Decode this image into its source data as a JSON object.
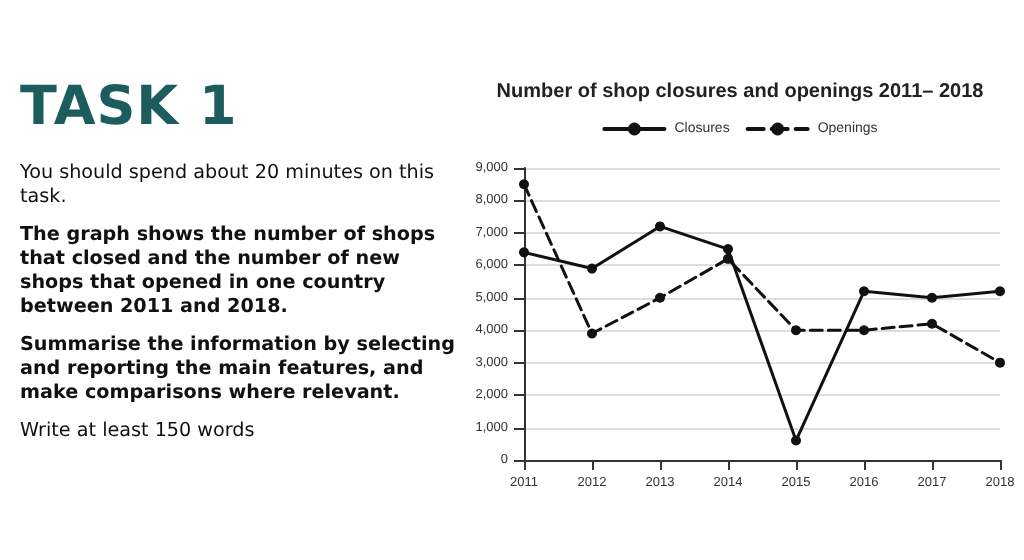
{
  "chart_data": {
    "type": "line",
    "title": "Number of shop closures and openings 2011– 2018",
    "annotations": [
      "TASK 1",
      "You should spend about 20 minutes on this task.",
      "The graph shows the number of shops that closed and the number of new shops that opened in one country between 2011 and 2018.",
      "Summarise the information by selecting and reporting the main features, and make comparisons where relevant.",
      "Write at least 150 words"
    ],
    "categories": [
      "2011",
      "2012",
      "2013",
      "2014",
      "2015",
      "2016",
      "2017",
      "2018"
    ],
    "series": [
      {
        "name": "Closures",
        "color": "#111111",
        "line_style": "solid",
        "values": [
          6400,
          5900,
          7200,
          6500,
          600,
          5200,
          5000,
          5200
        ]
      },
      {
        "name": "Openings",
        "color": "#111111",
        "line_style": "dashed",
        "values": [
          8500,
          3900,
          5000,
          6200,
          4000,
          4000,
          4200,
          3000
        ]
      }
    ],
    "ylim": [
      0,
      9000
    ],
    "yticks": [
      0,
      {
        "value": 1000,
        "label": "1,000"
      },
      {
        "value": 2000,
        "label": "2,000"
      },
      {
        "value": 3000,
        "label": "3,000"
      },
      {
        "value": 4000,
        "label": "4,000"
      },
      {
        "value": 5000,
        "label": "5,000"
      },
      {
        "value": 6000,
        "label": "6,000"
      },
      {
        "value": 7000,
        "label": "7,000"
      },
      {
        "value": 8000,
        "label": "8,000"
      },
      {
        "value": 9000,
        "label": "9,000"
      }
    ],
    "grid": "y",
    "legend": "top",
    "marker": "circle"
  }
}
